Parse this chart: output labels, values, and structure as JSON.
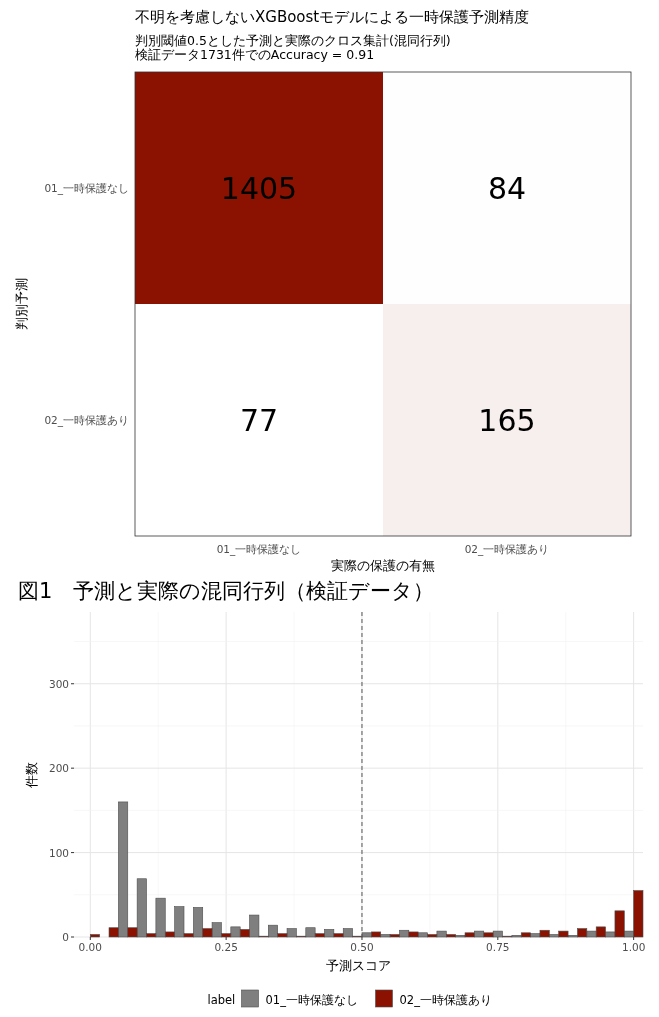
{
  "chart_data": [
    {
      "type": "heatmap",
      "title": "不明を考慮しないXGBoostモデルによる一時保護予測精度",
      "subtitle": "判別閾値0.5とした予測と実際のクロス集計(混同行列)\n検証データ1731件でのAccuracy = 0.91",
      "xlabel": "実際の保護の有無",
      "ylabel": "判別予測",
      "categories": [
        "01_一時保護なし",
        "02_一時保護あり"
      ],
      "y_categories": [
        "01_一時保護なし",
        "02_一時保護あり"
      ],
      "cells": [
        [
          1405,
          84
        ],
        [
          77,
          165
        ]
      ],
      "colors": [
        "#ffffff",
        "#8b1200"
      ],
      "data_labels": true,
      "annotations": [
        "図1　予測と実際の混同行列（検証データ）"
      ]
    },
    {
      "type": "histogram",
      "xlabel": "予測スコア",
      "ylabel": "件数",
      "legend_title": "label",
      "legend": "bottom",
      "grid": true,
      "bins": [
        -0.0172,
        0.0172,
        0.0517,
        0.0862,
        0.1207,
        0.1552,
        0.1897,
        0.2241,
        0.2586,
        0.2931,
        0.3276,
        0.3621,
        0.3966,
        0.431,
        0.4655,
        0.5,
        0.5345,
        0.569,
        0.6034,
        0.6379,
        0.6724,
        0.7069,
        0.7414,
        0.7759,
        0.8103,
        0.8448,
        0.8793,
        0.9138,
        0.9483,
        0.9828,
        1.0172
      ],
      "series": [
        {
          "name": "01_一時保護なし",
          "color": "#7f7f7f",
          "values": [
            null,
            null,
            160,
            69,
            46,
            36,
            35,
            17,
            12,
            26,
            14,
            10,
            11,
            9,
            10,
            5,
            3,
            8,
            5,
            7,
            2,
            7,
            7,
            2,
            4,
            3,
            2,
            7,
            6,
            7
          ]
        },
        {
          "name": "02_一時保護あり",
          "color": "#8b1200",
          "values": [
            3,
            11,
            11,
            4,
            6,
            4,
            10,
            4,
            9,
            1,
            4,
            1,
            4,
            4,
            1,
            6,
            3,
            6,
            3,
            3,
            5,
            5,
            1,
            5,
            8,
            7,
            10,
            12,
            31,
            55
          ]
        }
      ],
      "xlim": [
        -0.03,
        1.0172
      ],
      "ylim": [
        0,
        385
      ],
      "xticks": [
        {
          "value": 0,
          "label": "0.00"
        },
        {
          "value": 0.25,
          "label": "0.25"
        },
        {
          "value": 0.5,
          "label": "0.50"
        },
        {
          "value": 0.75,
          "label": "0.75"
        },
        {
          "value": 1,
          "label": "1.00"
        }
      ],
      "yticks": [
        0,
        100,
        200,
        300
      ],
      "ref_lines": [
        {
          "axis": "x",
          "value": 0.5,
          "line_style": "dashed",
          "color": "#555555"
        }
      ]
    }
  ]
}
